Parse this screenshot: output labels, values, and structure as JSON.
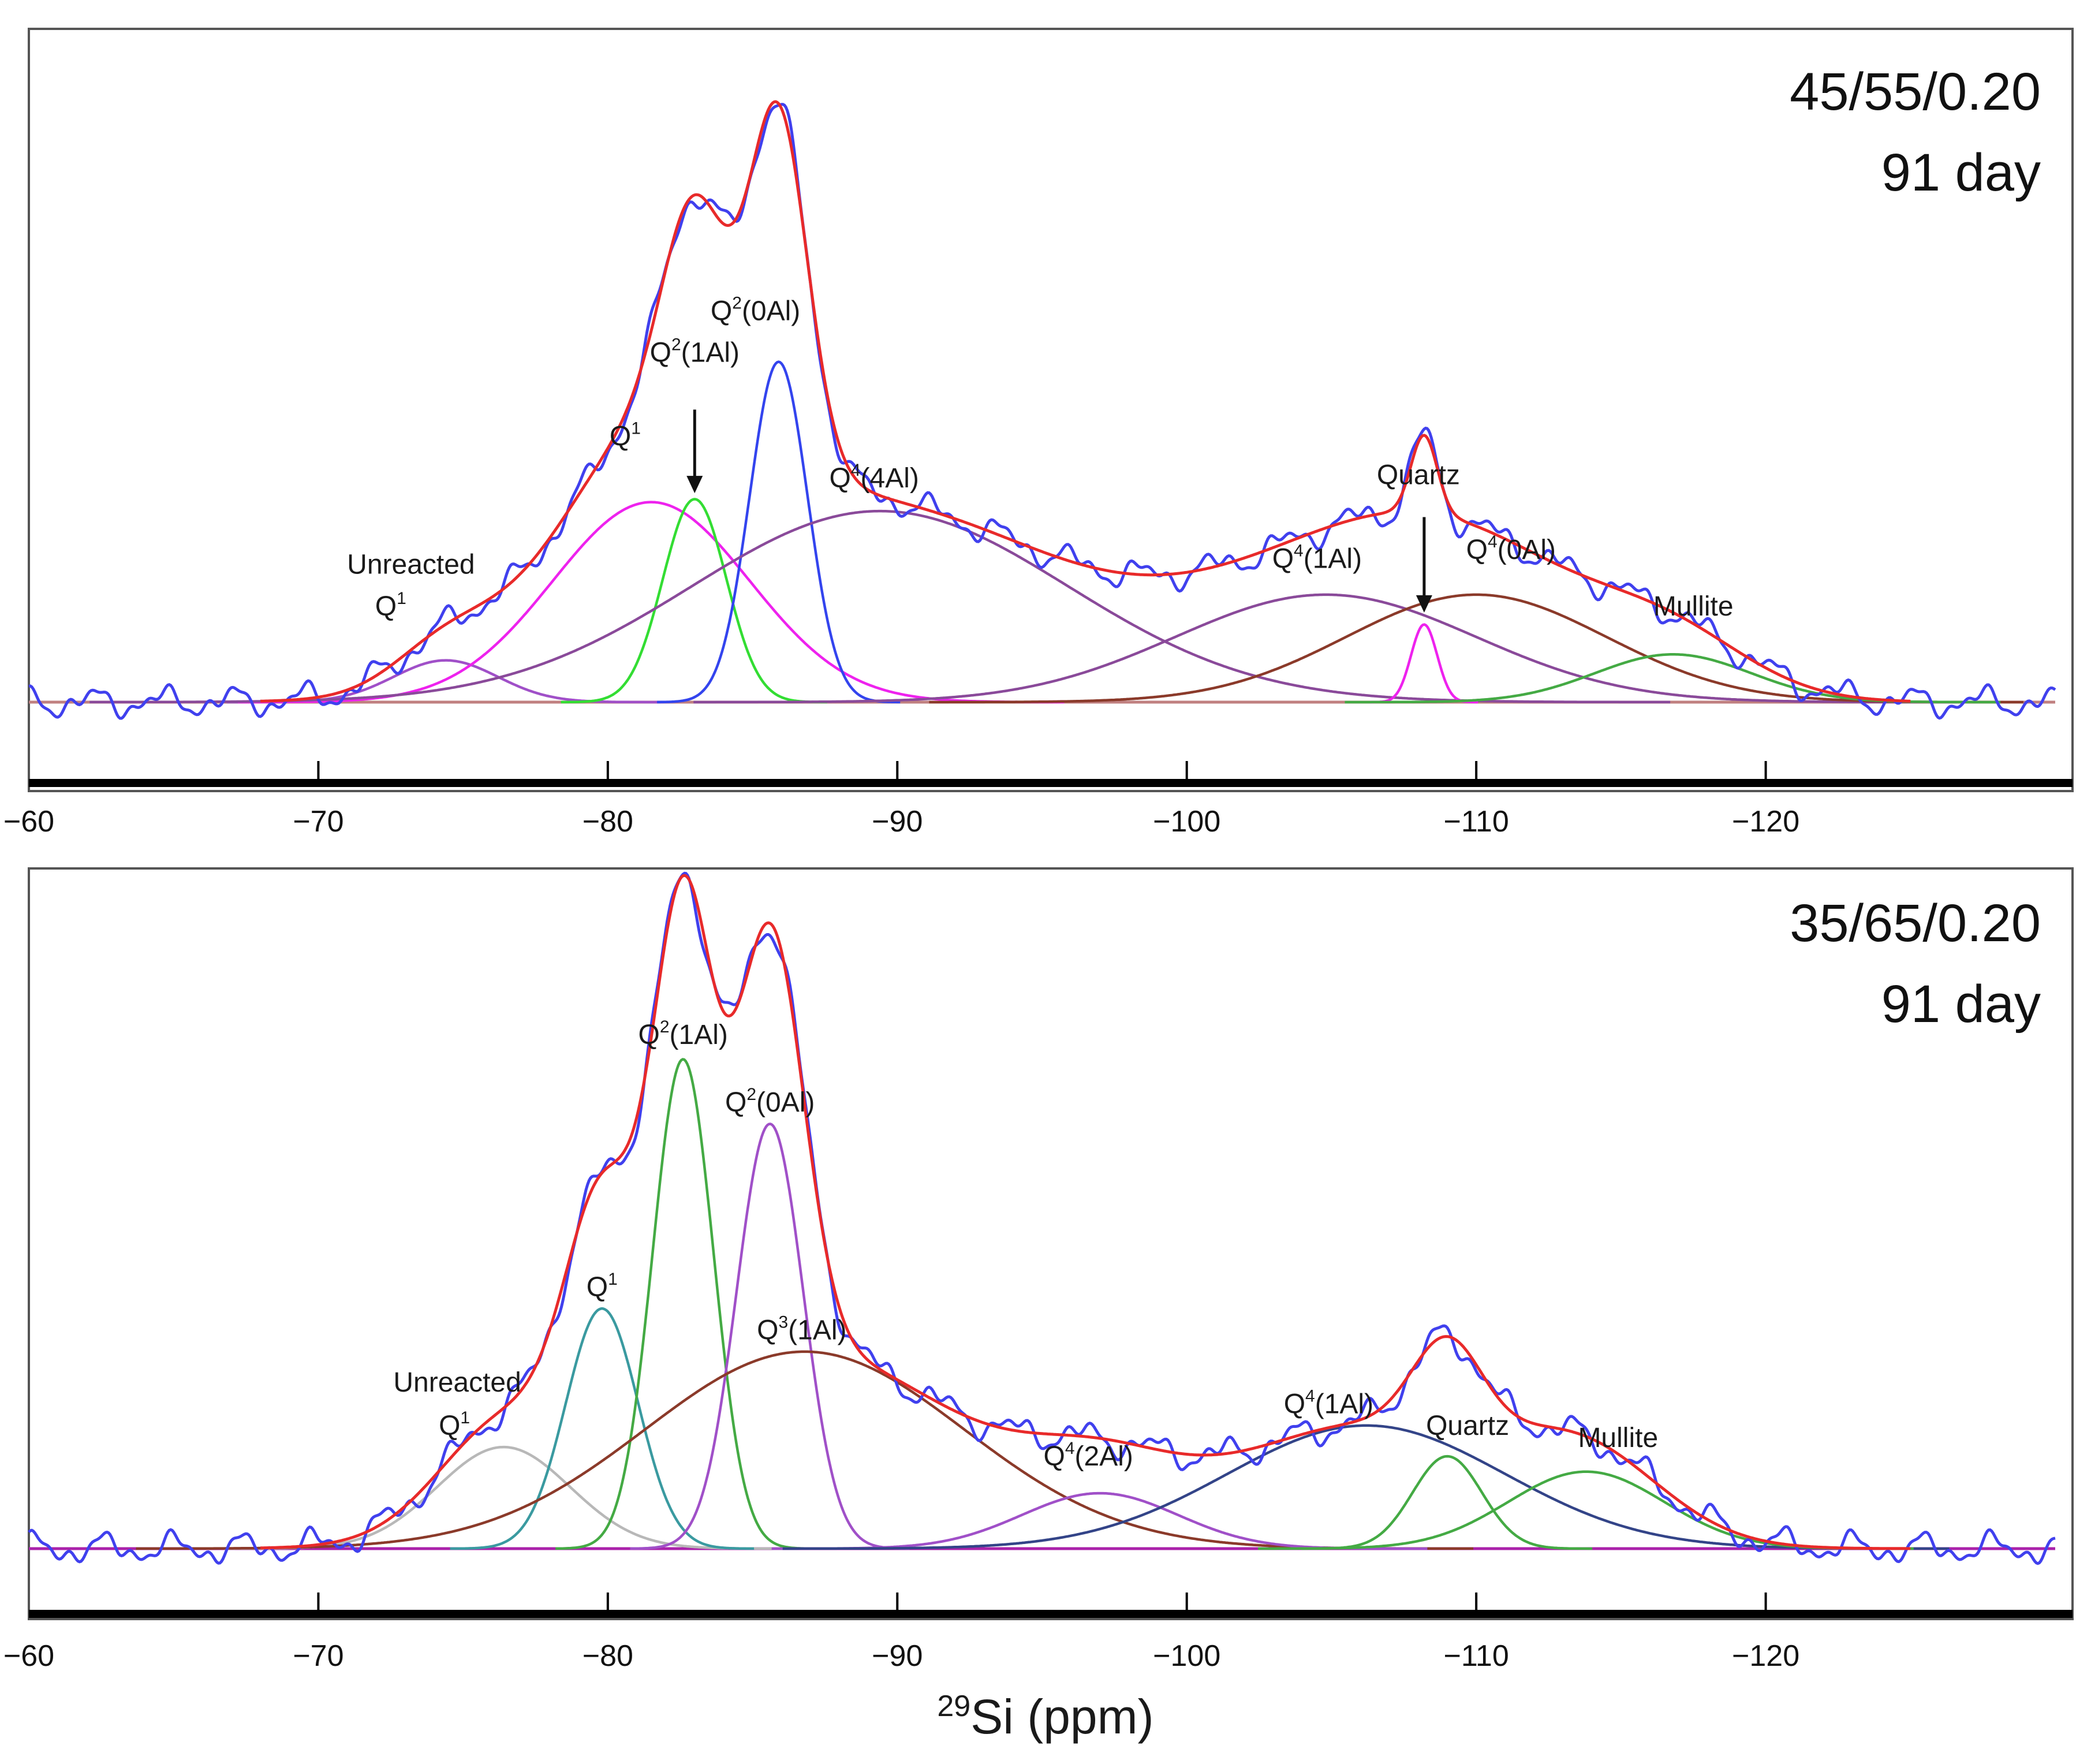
{
  "figure": {
    "xlabel_sup": "29",
    "xlabel_main": "Si (ppm)"
  },
  "chart_data": [
    {
      "type": "line",
      "title": "45/55/0.20",
      "subtitle": "91 day",
      "xlabel": "29Si (ppm)",
      "xlim": [
        -60,
        -130
      ],
      "xticks": [
        -60,
        -70,
        -80,
        -90,
        -100,
        -110,
        -120
      ],
      "xtick_labels": [
        "−60",
        "−70",
        "−80",
        "−90",
        "−100",
        "−110",
        "−120"
      ],
      "ylim": [
        0,
        1.06
      ],
      "colors": {
        "experimental": "#4040ee",
        "fit": "#e82a2a",
        "baseline": "#c08080"
      },
      "components": [
        {
          "name": "Unreacted Q1",
          "center": -74.4,
          "width": 1.8,
          "height": 0.07,
          "color": "#a050c8"
        },
        {
          "name": "Q1",
          "center": -81.5,
          "width": 3.4,
          "height": 0.335,
          "color": "#ee22ee"
        },
        {
          "name": "Q2(1Al)",
          "center": -83.0,
          "width": 1.1,
          "height": 0.34,
          "color": "#33dd33"
        },
        {
          "name": "Q2(0Al)",
          "center": -85.9,
          "width": 1.0,
          "height": 0.57,
          "color": "#3344ee"
        },
        {
          "name": "Q4(4Al)",
          "center": -89.4,
          "width": 6.5,
          "height": 0.32,
          "color": "#8a4a9a"
        },
        {
          "name": "Q4(1Al)",
          "center": -104.8,
          "width": 5.2,
          "height": 0.18,
          "color": "#8a4a9a"
        },
        {
          "name": "Q4(0Al)",
          "center": -110.0,
          "width": 4.5,
          "height": 0.18,
          "color": "#8b3a2a"
        },
        {
          "name": "Quartz",
          "center": -108.2,
          "width": 0.45,
          "height": 0.13,
          "color": "#ee22ee"
        },
        {
          "name": "Mullite",
          "center": -116.8,
          "width": 2.7,
          "height": 0.08,
          "color": "#44aa44"
        }
      ],
      "annotations": [
        {
          "text": "Unreacted",
          "x": -73.2,
          "y": 0.215
        },
        {
          "text": "Q",
          "sup": "1",
          "x": -72.5,
          "y": 0.145
        },
        {
          "text": "Q",
          "sup": "1",
          "x": -80.6,
          "y": 0.43
        },
        {
          "text": "Q",
          "sup": "2",
          "after": "(1Al)",
          "x": -83.0,
          "y": 0.57
        },
        {
          "text": "Q",
          "sup": "2",
          "after": "(0Al)",
          "x": -85.1,
          "y": 0.64
        },
        {
          "text": "Q",
          "sup": "4",
          "after": "(4Al)",
          "x": -89.2,
          "y": 0.36
        },
        {
          "text": "Quartz",
          "x": -108.0,
          "y": 0.365
        },
        {
          "text": "Q",
          "sup": "4",
          "after": "(1Al)",
          "x": -104.5,
          "y": 0.225
        },
        {
          "text": "Q",
          "sup": "4",
          "after": "(0Al)",
          "x": -111.2,
          "y": 0.24
        },
        {
          "text": "Mullite",
          "x": -117.5,
          "y": 0.145
        }
      ],
      "arrows": [
        {
          "x": -83.0,
          "y_from": 0.49,
          "y_to": 0.35
        },
        {
          "x": -108.2,
          "y_from": 0.31,
          "y_to": 0.15
        }
      ]
    },
    {
      "type": "line",
      "title": "35/65/0.20",
      "subtitle": "91 day",
      "xlabel": "29Si (ppm)",
      "xlim": [
        -60,
        -130
      ],
      "xticks": [
        -60,
        -70,
        -80,
        -90,
        -100,
        -110,
        -120
      ],
      "xtick_labels": [
        "−60",
        "−70",
        "−80",
        "−90",
        "−100",
        "−110",
        "−120"
      ],
      "ylim": [
        0,
        1.06
      ],
      "colors": {
        "experimental": "#4040ee",
        "fit": "#e82a2a",
        "baseline": "#aa22aa"
      },
      "components": [
        {
          "name": "Unreacted Q1",
          "center": -76.4,
          "width": 2.3,
          "height": 0.165,
          "color": "#b8b8b8"
        },
        {
          "name": "Q1",
          "center": -79.8,
          "width": 1.25,
          "height": 0.39,
          "color": "#3a9aa0"
        },
        {
          "name": "Q2(1Al)",
          "center": -82.6,
          "width": 1.05,
          "height": 0.795,
          "color": "#44aa44"
        },
        {
          "name": "Q2(0Al)",
          "center": -85.6,
          "width": 1.15,
          "height": 0.69,
          "color": "#a050c8"
        },
        {
          "name": "Q3(1Al)",
          "center": -86.8,
          "width": 5.5,
          "height": 0.32,
          "color": "#8b3a2a"
        },
        {
          "name": "Q4(2Al)",
          "center": -97.0,
          "width": 2.7,
          "height": 0.09,
          "color": "#a050c8"
        },
        {
          "name": "Q4(1Al)",
          "center": -106.2,
          "width": 4.8,
          "height": 0.2,
          "color": "#334488"
        },
        {
          "name": "Quartz",
          "center": -109.0,
          "width": 1.2,
          "height": 0.15,
          "color": "#44aa44"
        },
        {
          "name": "Mullite",
          "center": -113.8,
          "width": 2.7,
          "height": 0.125,
          "color": "#44aa44"
        }
      ],
      "annotations": [
        {
          "text": "Unreacted",
          "x": -74.8,
          "y": 0.255
        },
        {
          "text": "Q",
          "sup": "1",
          "x": -74.7,
          "y": 0.185
        },
        {
          "text": "Q",
          "sup": "1",
          "x": -79.8,
          "y": 0.41
        },
        {
          "text": "Q",
          "sup": "2",
          "after": "(1Al)",
          "x": -82.6,
          "y": 0.82
        },
        {
          "text": "Q",
          "sup": "2",
          "after": "(0Al)",
          "x": -85.6,
          "y": 0.71
        },
        {
          "text": "Q",
          "sup": "3",
          "after": "(1Al)",
          "x": -86.7,
          "y": 0.34
        },
        {
          "text": "Q",
          "sup": "4",
          "after": "(2Al)",
          "x": -96.6,
          "y": 0.135
        },
        {
          "text": "Q",
          "sup": "4",
          "after": "(1Al)",
          "x": -104.9,
          "y": 0.22
        },
        {
          "text": "Quartz",
          "x": -109.7,
          "y": 0.185
        },
        {
          "text": "Mullite",
          "x": -114.9,
          "y": 0.165
        }
      ],
      "arrows": []
    }
  ]
}
